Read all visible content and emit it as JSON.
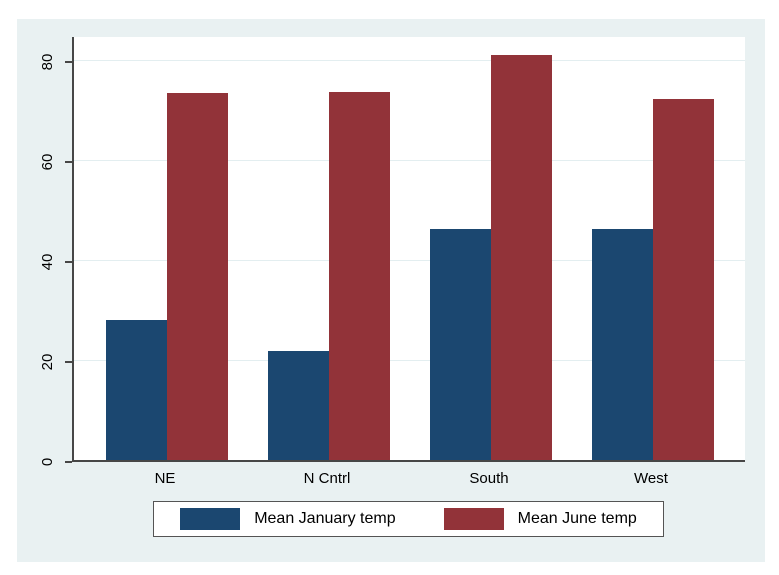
{
  "figure": {
    "background_color": "#e9f1f2",
    "plot_background_color": "#ffffff",
    "gridline_color": "#e3eef0",
    "axis_color": "#474747",
    "legend_border_color": "#545454"
  },
  "chart_data": {
    "type": "bar",
    "title": "",
    "xlabel": "",
    "ylabel": "",
    "categories": [
      "NE",
      "N Cntrl",
      "South",
      "West"
    ],
    "series": [
      {
        "name": "Mean January temp",
        "color": "#1b4770",
        "values": [
          27.9,
          21.7,
          46.1,
          46.2
        ]
      },
      {
        "name": "Mean June temp",
        "color": "#923339",
        "values": [
          73.4,
          73.5,
          80.9,
          72.1
        ]
      }
    ],
    "yticks": [
      0,
      20,
      40,
      60,
      80
    ],
    "ylim": [
      0,
      85
    ],
    "grid": true,
    "ytick_label_rotation_deg": -90,
    "legend_position": "bottom-center-boxed"
  }
}
